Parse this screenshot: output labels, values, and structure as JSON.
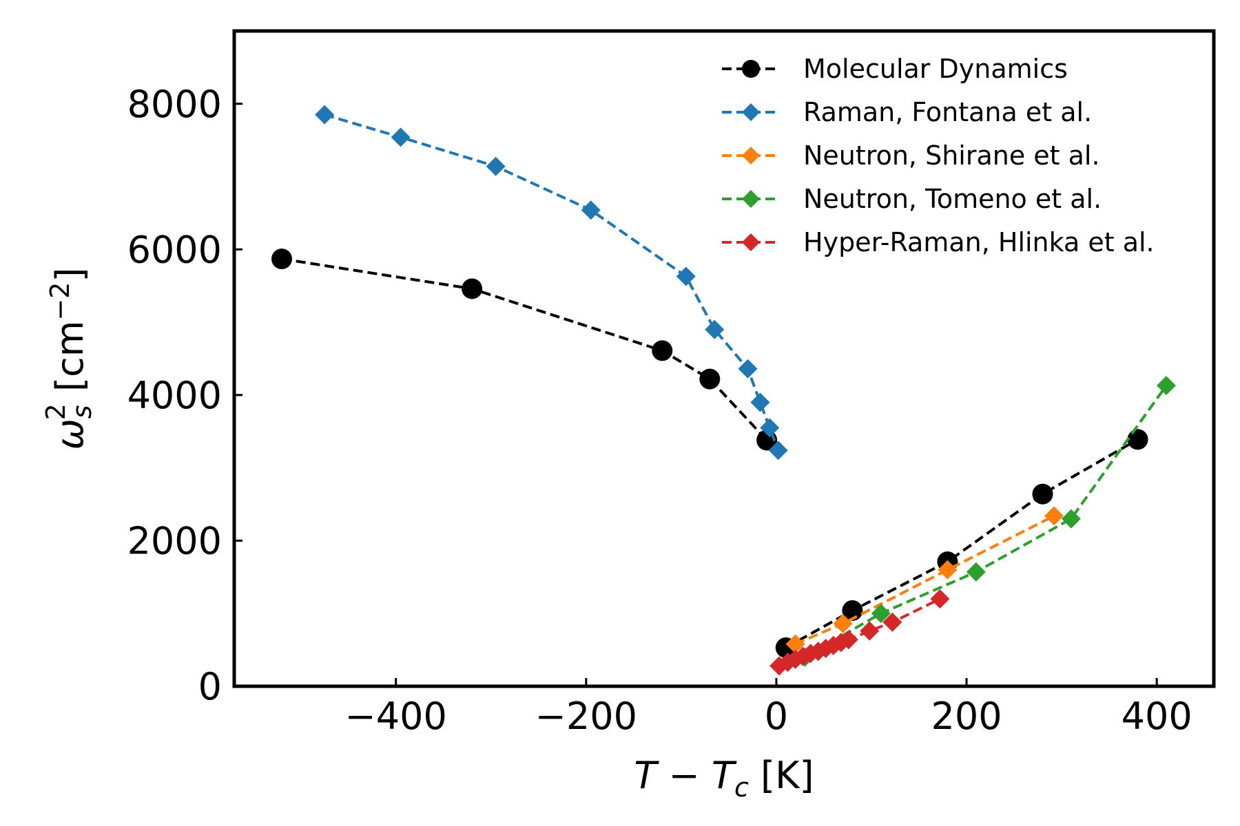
{
  "chart_data": {
    "type": "line",
    "xlabel": "T − Tc [K]",
    "ylabel": "ωs² [cm⁻²]",
    "xlim": [
      -570,
      460
    ],
    "ylim": [
      0,
      9000
    ],
    "x_ticks": [
      -400,
      -200,
      0,
      200,
      400
    ],
    "y_ticks": [
      0,
      2000,
      4000,
      6000,
      8000
    ],
    "x_tick_labels": [
      "−400",
      "−200",
      "0",
      "200",
      "400"
    ],
    "y_tick_labels": [
      "0",
      "2000",
      "4000",
      "6000",
      "8000"
    ],
    "grid": false,
    "legend_position": "top-right",
    "series": [
      {
        "name": "Molecular Dynamics",
        "color": "#000000",
        "marker": "circle",
        "segments": [
          [
            [
              -520,
              5870
            ],
            [
              -320,
              5460
            ],
            [
              -120,
              4610
            ],
            [
              -70,
              4220
            ],
            [
              -10,
              3380
            ]
          ],
          [
            [
              10,
              530
            ],
            [
              80,
              1040
            ],
            [
              180,
              1710
            ],
            [
              280,
              2640
            ],
            [
              380,
              3390
            ]
          ]
        ]
      },
      {
        "name": "Raman, Fontana et al.",
        "color": "#1f77b4",
        "marker": "diamond",
        "segments": [
          [
            [
              -475,
              7850
            ],
            [
              -395,
              7540
            ],
            [
              -295,
              7140
            ],
            [
              -195,
              6540
            ],
            [
              -95,
              5630
            ],
            [
              -65,
              4900
            ],
            [
              -30,
              4360
            ],
            [
              -17,
              3900
            ],
            [
              -7,
              3550
            ],
            [
              2,
              3240
            ]
          ]
        ]
      },
      {
        "name": "Neutron, Shirane et al.",
        "color": "#ff7f0e",
        "marker": "diamond",
        "segments": [
          [
            [
              20,
              580
            ],
            [
              70,
              860
            ],
            [
              180,
              1600
            ],
            [
              292,
              2340
            ]
          ]
        ]
      },
      {
        "name": "Neutron, Tomeno et al.",
        "color": "#2ca02c",
        "marker": "diamond",
        "segments": [
          [
            [
              30,
              400
            ],
            [
              110,
              1000
            ],
            [
              210,
              1570
            ],
            [
              310,
              2300
            ],
            [
              410,
              4130
            ]
          ]
        ]
      },
      {
        "name": "Hyper-Raman, Hlinka et al.",
        "color": "#d62728",
        "marker": "diamond",
        "segments": [
          [
            [
              3,
              280
            ],
            [
              12,
              330
            ],
            [
              20,
              370
            ],
            [
              28,
              410
            ],
            [
              36,
              450
            ],
            [
              44,
              480
            ],
            [
              52,
              520
            ],
            [
              60,
              560
            ],
            [
              68,
              600
            ],
            [
              76,
              640
            ],
            [
              98,
              760
            ],
            [
              122,
              880
            ],
            [
              172,
              1200
            ]
          ]
        ]
      }
    ]
  }
}
